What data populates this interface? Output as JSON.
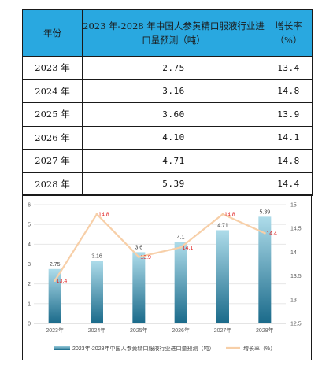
{
  "table": {
    "headers": [
      "年份",
      "2023 年-2028 年中国人参黄精口服液行业进口量预测（吨）",
      "增长率（%）"
    ],
    "rows": [
      {
        "year": "2023 年",
        "volume": "2.75",
        "growth": "13.4"
      },
      {
        "year": "2024 年",
        "volume": "3.16",
        "growth": "14.8"
      },
      {
        "year": "2025 年",
        "volume": "3.60",
        "growth": "13.9"
      },
      {
        "year": "2026 年",
        "volume": "4.10",
        "growth": "14.1"
      },
      {
        "year": "2027 年",
        "volume": "4.71",
        "growth": "14.8"
      },
      {
        "year": "2028 年",
        "volume": "5.39",
        "growth": "14.4"
      }
    ]
  },
  "colors": {
    "header_bg": "#29a8e0",
    "bar_top": "#aedcea",
    "bar_bottom": "#1a6a8a",
    "line": "#f7cfa8",
    "line_label": "#e02020"
  },
  "chart_data": {
    "type": "bar+line",
    "categories": [
      "2023年",
      "2024年",
      "2025年",
      "2026年",
      "2027年",
      "2028年"
    ],
    "series": [
      {
        "name": "2023年-2028年中国人参黄精口服液行业进口量预测（吨）",
        "type": "bar",
        "axis": "left",
        "values": [
          2.75,
          3.16,
          3.6,
          4.1,
          4.71,
          5.39
        ],
        "labels": [
          "2.75",
          "3.16",
          "3.6",
          "4.1",
          "4.71",
          "5.39"
        ]
      },
      {
        "name": "增长率（%）",
        "type": "line",
        "axis": "right",
        "values": [
          13.4,
          14.8,
          13.9,
          14.1,
          14.8,
          14.4
        ],
        "labels": [
          "13.4",
          "14.8",
          "13.9",
          "14.1",
          "14.8",
          "14.4"
        ]
      }
    ],
    "left_axis": {
      "min": 0,
      "max": 6,
      "ticks": [
        "0",
        "1",
        "2",
        "3",
        "4",
        "5",
        "6"
      ]
    },
    "right_axis": {
      "min": 12.5,
      "max": 15,
      "ticks": [
        "12.5",
        "13",
        "13.5",
        "14",
        "14.5",
        "15"
      ]
    },
    "grid": true,
    "legend_position": "bottom"
  }
}
